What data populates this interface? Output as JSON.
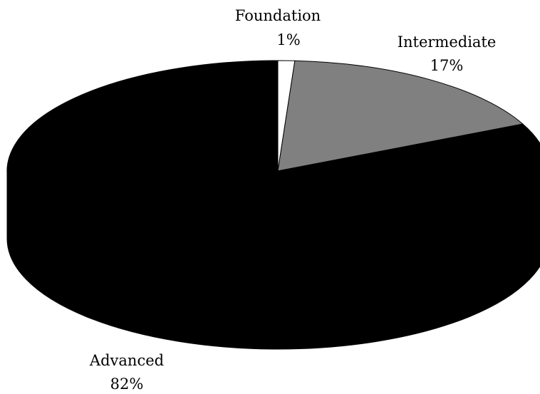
{
  "chart_data": {
    "type": "pie",
    "style": "3d",
    "title": "",
    "slices": [
      {
        "label": "Foundation",
        "value": 1,
        "value_label": "1%",
        "color": "#ffffff"
      },
      {
        "label": "Intermediate",
        "value": 17,
        "value_label": "17%",
        "color": "#808080"
      },
      {
        "label": "Advanced",
        "value": 82,
        "value_label": "82%",
        "color": "#000000"
      }
    ]
  }
}
